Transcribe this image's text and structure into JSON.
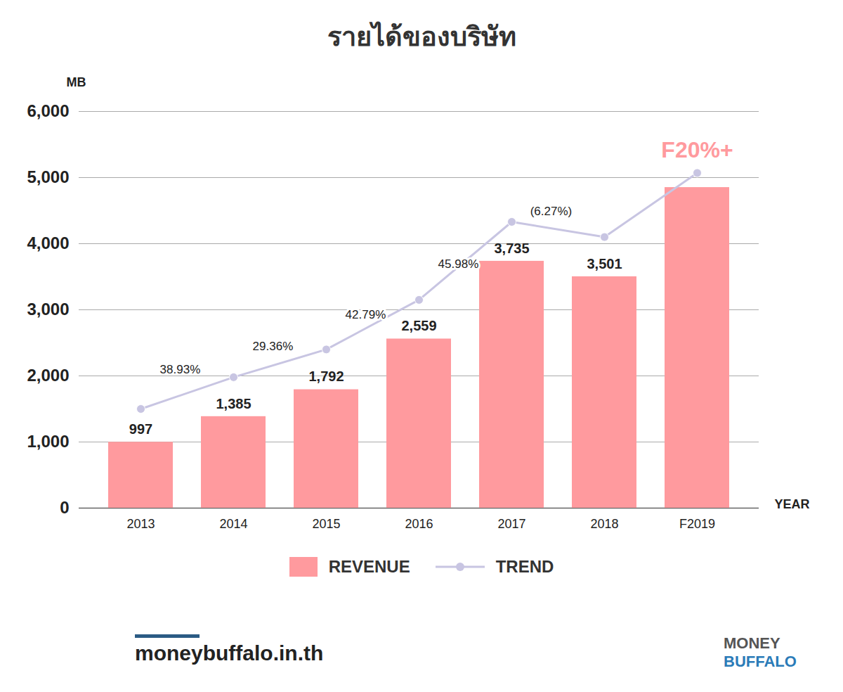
{
  "chart_data": {
    "type": "bar",
    "title": "รายได้ของบริษัท",
    "y_label": "MB",
    "x_label": "YEAR",
    "categories": [
      "2013",
      "2014",
      "2015",
      "2016",
      "2017",
      "2018",
      "F2019"
    ],
    "series": [
      {
        "name": "REVENUE",
        "type": "bar",
        "color": "#ff9a9e",
        "values": [
          997,
          1385,
          1792,
          2559,
          3735,
          3501,
          4850
        ],
        "value_labels": [
          "997",
          "1,385",
          "1,792",
          "2,559",
          "3,735",
          "3,501",
          null
        ]
      },
      {
        "name": "TREND",
        "type": "line",
        "color": "#c8c5e2",
        "marker": "circle",
        "values": [
          1500,
          1980,
          2400,
          3150,
          4330,
          4100,
          5070
        ]
      }
    ],
    "annotations": [
      {
        "text": "38.93%",
        "x": "2014",
        "y": 2100
      },
      {
        "text": "29.36%",
        "x": "2015",
        "y": 2450
      },
      {
        "text": "42.79%",
        "x": "2016",
        "y": 2925
      },
      {
        "text": "45.98%",
        "x": "2017",
        "y": 3690
      },
      {
        "text": "(6.27%)",
        "x": "2018",
        "y": 4490
      },
      {
        "text": "F20%+",
        "x": "F2019",
        "y": 5415
      }
    ],
    "ylim": [
      0,
      6000
    ],
    "yticks": [
      0,
      1000,
      2000,
      3000,
      4000,
      5000,
      6000
    ],
    "grid": true,
    "data_labels": true,
    "legend": "bottom"
  },
  "footer": {
    "website": "moneybuffalo.in.th",
    "logo": [
      "MONEY",
      "BUFFALO"
    ]
  }
}
